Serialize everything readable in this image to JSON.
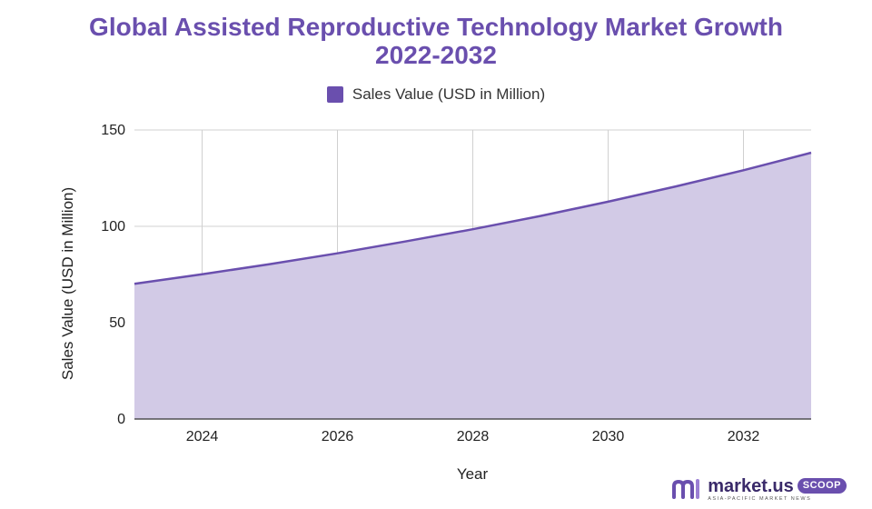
{
  "chart_data": {
    "type": "area",
    "title_line1": "Global Assisted Reproductive Technology Market Growth",
    "title_line2": "2022-2032",
    "xlabel": "Year",
    "ylabel": "Sales Value (USD in Million)",
    "xlim": [
      2023,
      2033
    ],
    "ylim": [
      0,
      150
    ],
    "x_ticks": [
      2024,
      2026,
      2028,
      2030,
      2032
    ],
    "y_ticks": [
      0,
      50,
      100,
      150
    ],
    "grid": true,
    "legend_position": "top",
    "series": [
      {
        "name": "Sales Value (USD in Million)",
        "line_color": "#6a4fae",
        "fill_color": "#d2cae6",
        "x": [
          2023,
          2024,
          2025,
          2026,
          2027,
          2028,
          2029,
          2030,
          2031,
          2032,
          2033
        ],
        "values": [
          70.2,
          75.1,
          80.4,
          86.0,
          92.1,
          98.5,
          105.4,
          112.8,
          120.7,
          129.1,
          138.2
        ]
      }
    ]
  },
  "brand": {
    "name": "market.us",
    "badge": "SCOOP",
    "tagline": "ASIA-PACIFIC MARKET NEWS",
    "logo_icon": "market-us-logo-icon"
  }
}
